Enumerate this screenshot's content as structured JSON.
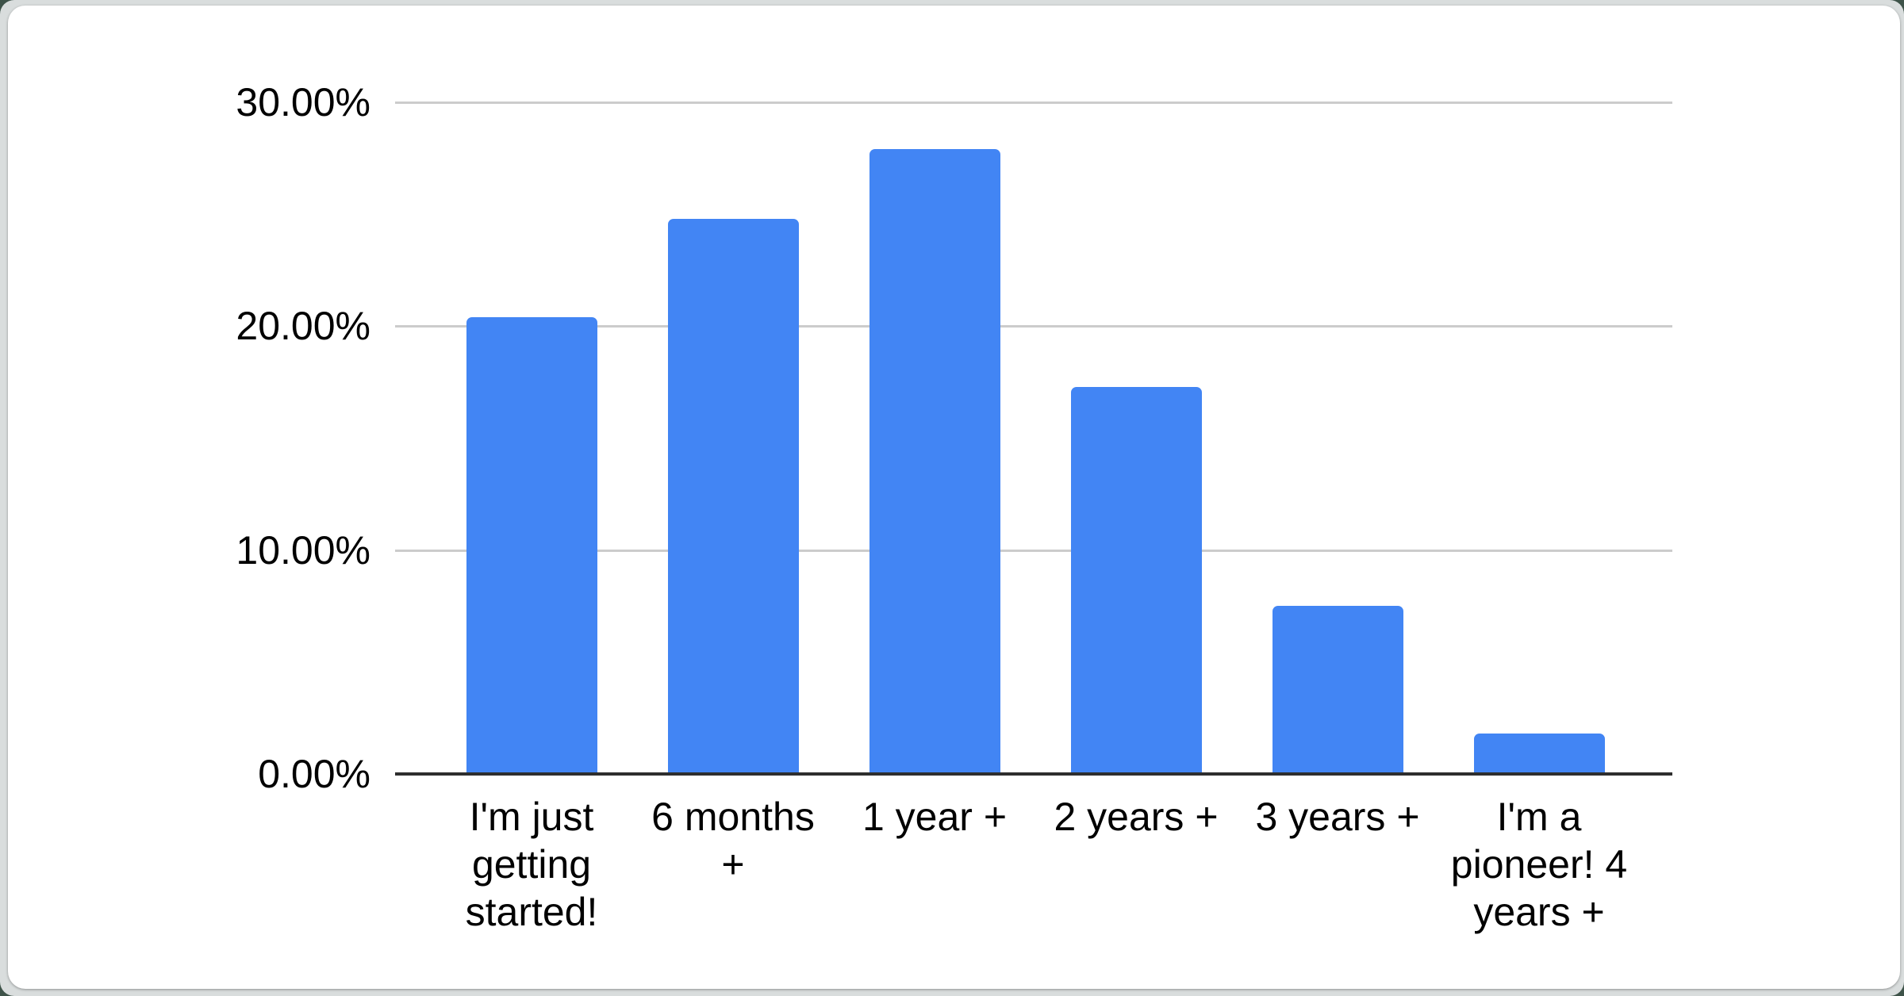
{
  "page": {
    "outer_background_color": "#3e5349",
    "frame_background_color": "#d9dddd",
    "card_background_color": "#ffffff"
  },
  "chart_data": {
    "type": "bar",
    "categories": [
      "I'm just getting started!",
      "6 months +",
      "1 year +",
      "2 years +",
      "3 years +",
      "I'm a pioneer! 4 years +"
    ],
    "values": [
      20.4,
      24.8,
      27.9,
      17.3,
      7.5,
      1.8
    ],
    "value_unit": "%",
    "ylim": [
      0,
      30
    ],
    "yticks": [
      {
        "value": 0,
        "label": "0.00%"
      },
      {
        "value": 10,
        "label": "10.00%"
      },
      {
        "value": 20,
        "label": "20.00%"
      },
      {
        "value": 30,
        "label": "30.00%"
      }
    ],
    "grid": "horizontal",
    "legend": "none",
    "bar_color": "#4285f4",
    "gridline_color": "#cccccc",
    "axis_line_color": "#2e2e2e",
    "label_color": "#000000"
  }
}
